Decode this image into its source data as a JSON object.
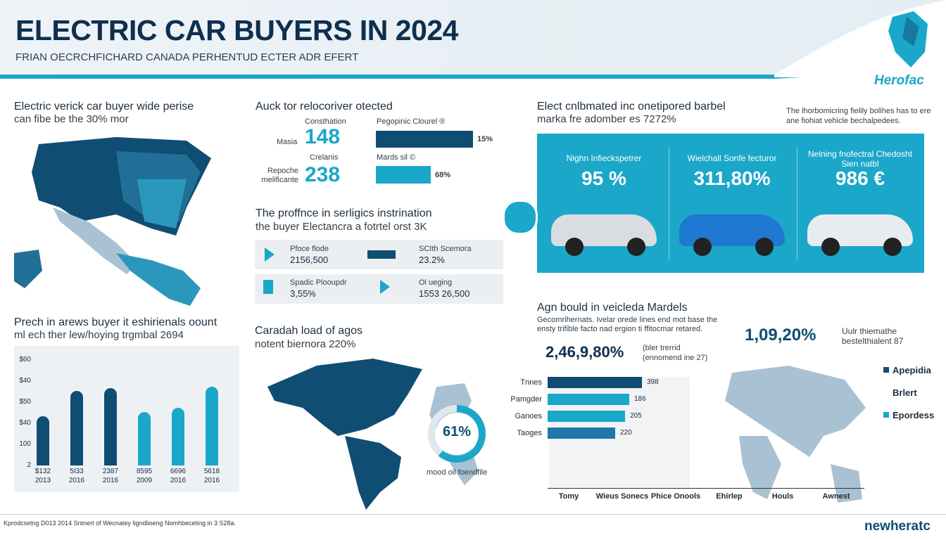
{
  "header": {
    "title": "ELECTRIC CAR BUYERS  IN  2024",
    "subtitle": "FRIAN OECRCHFICHARD CANADA PERHENTUD ECTER ADR EFERT",
    "brand": "Herofac"
  },
  "map_panel": {
    "title": "Electric verick car buyer wide perise",
    "subtitle": "can fibe be the 30% mor"
  },
  "stats_panel": {
    "title": "Auck tor relocoriver otected",
    "items": [
      {
        "label": "Masia",
        "caption": "Consthation",
        "value": "148"
      },
      {
        "label": "Repoche melificante",
        "caption": "Crelanis",
        "value": "238"
      }
    ],
    "bars": [
      {
        "label": "Pegopinic Clourel ®",
        "value": "15%"
      },
      {
        "label": "Mards sil ©",
        "value": "68%"
      }
    ]
  },
  "instruction_panel": {
    "title": "The proffnce in serligics instrination",
    "subtitle": "the buyer Electancra a fotrtel orst 3K",
    "rows": [
      [
        {
          "label": "Pfoce flode",
          "value": "2156,500"
        },
        {
          "label": "SCIth Scemora",
          "value": "23.2%"
        }
      ],
      [
        {
          "label": "Spadic Plooupdr",
          "value": "3,55%"
        },
        {
          "label": "Ol ueging",
          "value": "1553 26,500"
        }
      ]
    ]
  },
  "cars_panel": {
    "title": "Elect cnlbmated inc onetipored barbel",
    "subtitle": "marka fre adomber es 7272%",
    "note": "The lhorbomicring fielily bolihes has to ere ane fiohiat vehicle bechalpedees.",
    "cars": [
      {
        "label": "Nighn Infieckspetrer",
        "value": "95 %"
      },
      {
        "label": "Wielchall Sonfe fecturor",
        "value": "311,80%"
      },
      {
        "label": "Nelning fnofectral Chedosht Sien natbl",
        "value": "986 €"
      }
    ]
  },
  "trend_panel": {
    "title": "Prech in arews buyer it eshirienals oount",
    "subtitle": "ml ech ther lew/hoying trgmbal 2694",
    "axis_labels": [
      "$60",
      "$40",
      "$50",
      "$40",
      "100",
      "2"
    ],
    "columns": [
      {
        "top": "$132",
        "bottom": "2013"
      },
      {
        "top": "5I33",
        "bottom": "2016"
      },
      {
        "top": "2387",
        "bottom": "2016"
      },
      {
        "top": "8595",
        "bottom": "2009"
      },
      {
        "top": "6696",
        "bottom": "2016"
      },
      {
        "top": "5618",
        "bottom": "2016"
      }
    ]
  },
  "canada_panel": {
    "title": "Caradah load of agos",
    "subtitle": "notent biernora 220%",
    "donut": "61%",
    "caption": "mood oil foendfile"
  },
  "models_panel": {
    "title": "Agn bould in veicleda Mardels",
    "description": "Gecomrihernats. Ivelar orede lines end mot base the ensty trifible facto nad ergion ti ffitocmar retared.",
    "big_left": "2,46,9,80%",
    "big_left_note": "(bler trerrid (ennomend ine 27)",
    "big_right": "1,09,20%",
    "big_right_note": "Uulr thiemathe bestelthialent 87",
    "bars": [
      {
        "label": "Tnnes",
        "value": "398"
      },
      {
        "label": "Pamgder",
        "value": "186"
      },
      {
        "label": "Ganoes",
        "value": "205"
      },
      {
        "label": "Taoges",
        "value": "220"
      }
    ],
    "axis_categories": [
      "Tomy",
      "Wieus Sonecs",
      "Phice Onools",
      "Ehirlep",
      "Houls",
      "Awnest"
    ],
    "legend": [
      "Apepidia",
      "Brlert",
      "Epordess"
    ]
  },
  "footer": {
    "text": "Kprodcsetng D013 2014 Sntnert of Wecnatey ligndlioeng Nomhbeceting in 3 S28a.",
    "brand": "newheratc"
  }
}
